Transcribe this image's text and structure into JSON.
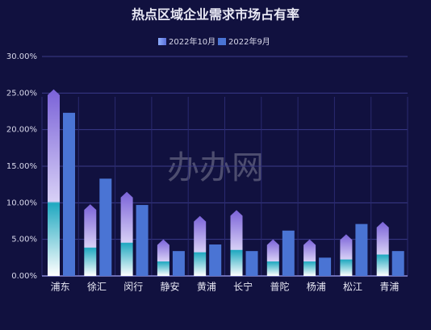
{
  "chart_data": {
    "type": "bar",
    "title": "热点区域企业需求市场占有率",
    "watermark": "办办网",
    "categories": [
      "浦东",
      "徐汇",
      "闵行",
      "静安",
      "黄浦",
      "长宁",
      "普陀",
      "杨浦",
      "松江",
      "青浦"
    ],
    "series": [
      {
        "name": "2022年10月",
        "color": "#8a78e8",
        "values": [
          25.5,
          9.8,
          11.5,
          5.0,
          8.2,
          9.0,
          5.0,
          5.0,
          5.7,
          7.4
        ]
      },
      {
        "name": "2022年9月",
        "color": "#4a74d4",
        "values": [
          22.3,
          13.3,
          9.7,
          3.4,
          4.3,
          3.4,
          6.2,
          2.5,
          7.1,
          3.4
        ]
      }
    ],
    "ylim": [
      0,
      30
    ],
    "yticks": [
      {
        "value": 0,
        "label": "0.00%"
      },
      {
        "value": 5,
        "label": "5.00%"
      },
      {
        "value": 10,
        "label": "10.00%"
      },
      {
        "value": 15,
        "label": "15.00%"
      },
      {
        "value": 20,
        "label": "20.00%"
      },
      {
        "value": 25,
        "label": "25.00%"
      },
      {
        "value": 30,
        "label": "30.00%"
      }
    ],
    "grid": true
  }
}
